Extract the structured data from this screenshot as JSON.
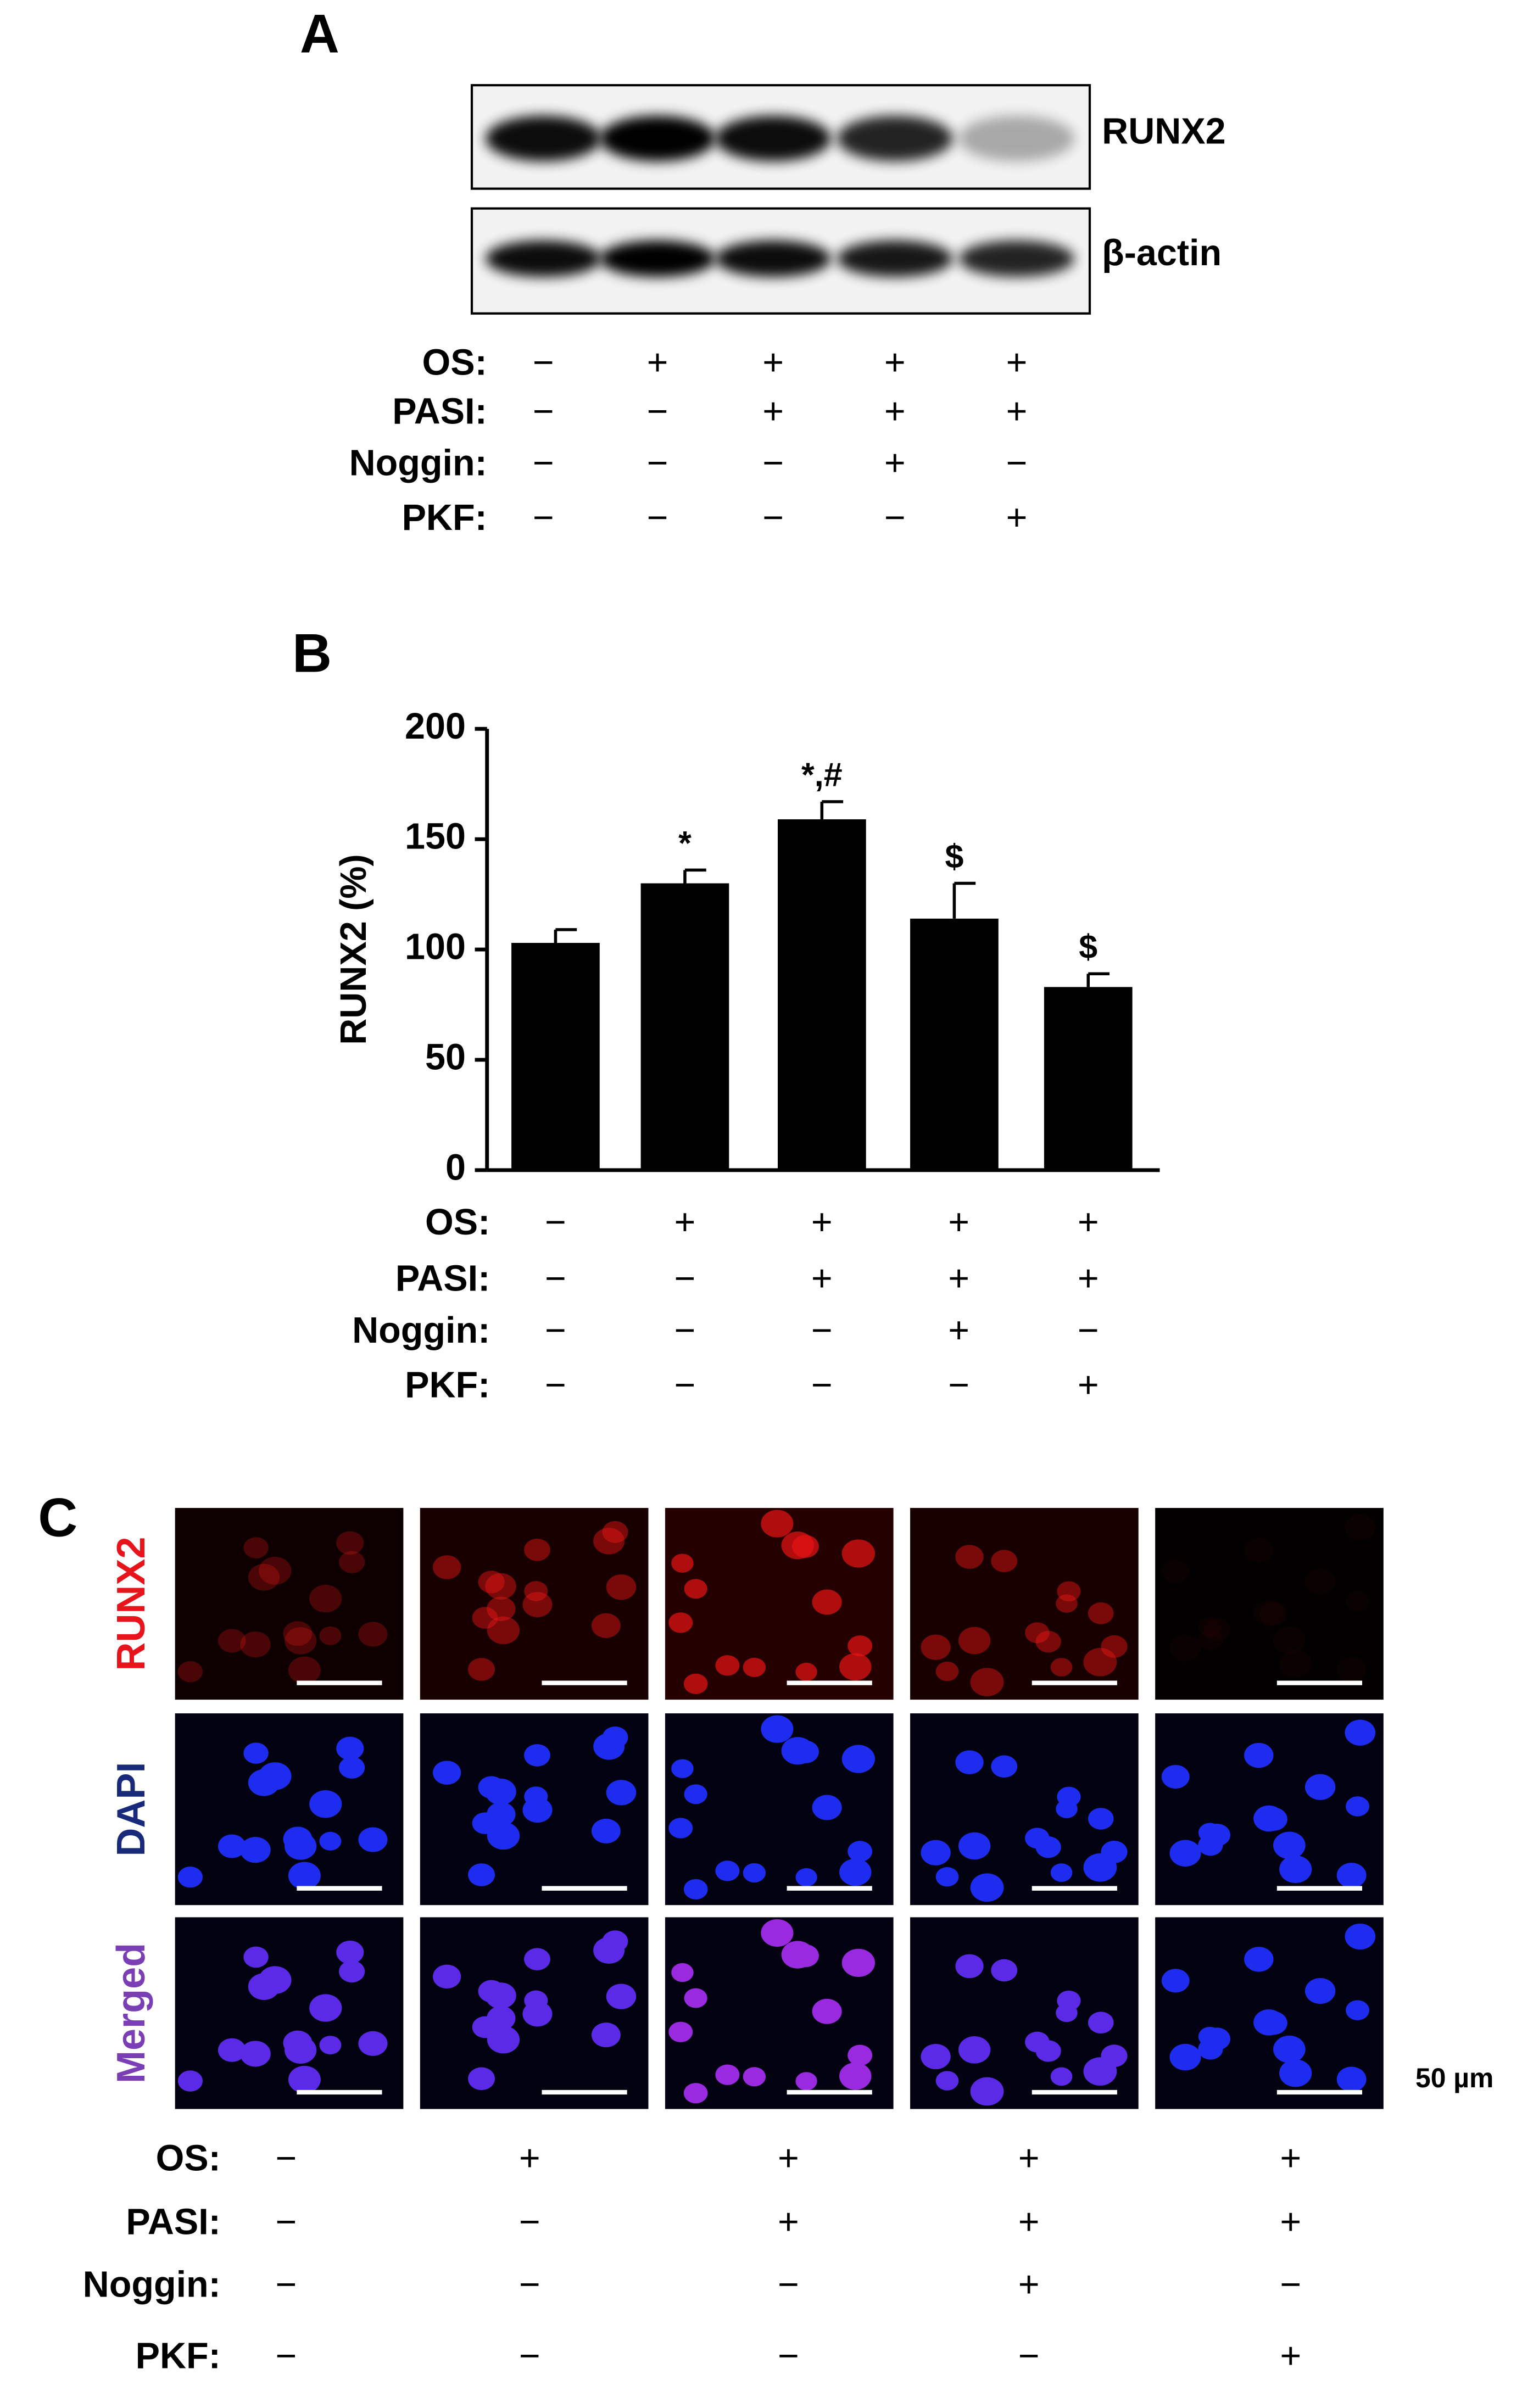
{
  "panel_a": {
    "letter": "A",
    "blot_labels": [
      "RUNX2",
      "β-actin"
    ]
  },
  "chart_data": {
    "type": "bar",
    "letter": "B",
    "ylabel": "RUNX2 (%)",
    "categories": [
      null,
      null,
      null,
      null,
      null
    ],
    "values": [
      103,
      130,
      159,
      114,
      83
    ],
    "errors": [
      6,
      6,
      8,
      16,
      6
    ],
    "annotations": [
      null,
      "*",
      "*,#",
      "$",
      "$"
    ],
    "color": "#000000",
    "ylim": [
      0,
      200
    ],
    "yticks": [
      0,
      50,
      100,
      150,
      200
    ]
  },
  "panel_c": {
    "letter": "C",
    "row_labels": [
      "RUNX2",
      "DAPI",
      "Merged"
    ],
    "row_label_colors": [
      "#e8141c",
      "#1a2a7a",
      "#7b3fb5"
    ],
    "scale_label": "50 µm"
  },
  "conditions": {
    "labels": [
      "OS:",
      "PASI:",
      "Noggin:",
      "PKF:"
    ],
    "rows": [
      [
        "−",
        "+",
        "+",
        "+",
        "+"
      ],
      [
        "−",
        "−",
        "+",
        "+",
        "+"
      ],
      [
        "−",
        "−",
        "−",
        "+",
        "−"
      ],
      [
        "−",
        "−",
        "−",
        "−",
        "+"
      ]
    ]
  }
}
